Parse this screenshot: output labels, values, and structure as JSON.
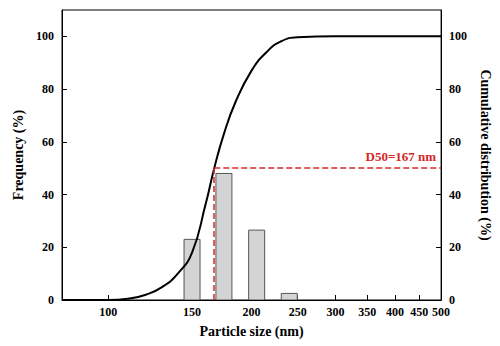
{
  "chart_data": {
    "type": "bar",
    "log": "x",
    "grid": false,
    "xlabel": "Particle size (nm)",
    "ylabel": "Frequency (%)",
    "y2label": "Cumulative distribution (%)",
    "xlim": [
      80,
      500
    ],
    "xticks": [
      100,
      150,
      200,
      250,
      300,
      350,
      400,
      450,
      500
    ],
    "ylim": [
      0,
      110
    ],
    "yticks": [
      0,
      20,
      40,
      60,
      80,
      100
    ],
    "y2lim": [
      0,
      110
    ],
    "y2ticks": [
      0,
      20,
      40,
      60,
      80,
      100
    ],
    "series": [
      {
        "type": "bar",
        "color": "#d4d4d4",
        "x": [
          150,
          175,
          205,
          240
        ],
        "values": [
          23,
          48,
          26.5,
          2.5
        ]
      },
      {
        "type": "line",
        "color": "#000000",
        "axis": "y2",
        "line_style": "solid",
        "x": [
          80,
          100,
          110,
          120,
          130,
          140,
          150,
          160,
          167,
          175,
          185,
          200,
          215,
          230,
          250,
          300,
          350,
          400,
          450,
          500
        ],
        "values": [
          0,
          0,
          0.5,
          2,
          5,
          10,
          18,
          36,
          50,
          63,
          75,
          87,
          94,
          98,
          99.7,
          100,
          100,
          100,
          100,
          100
        ]
      }
    ],
    "annotations": [
      {
        "text": "D50=167 nm",
        "x": 167,
        "y": 50,
        "color": "#d62728",
        "line_style": "dashed"
      }
    ]
  }
}
